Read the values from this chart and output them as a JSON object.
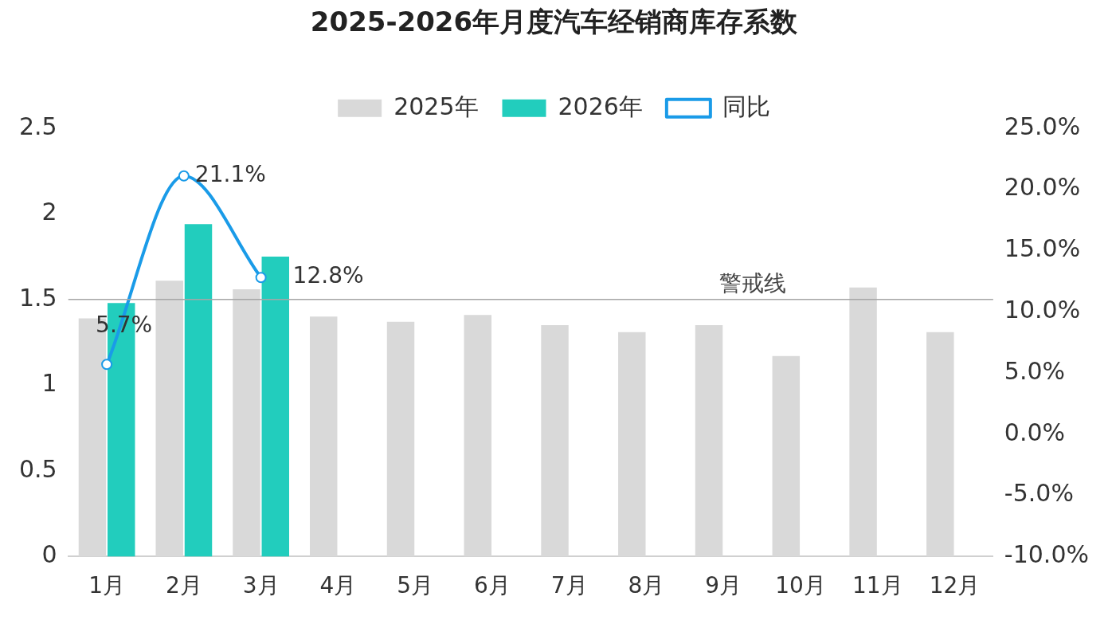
{
  "chart_data": {
    "type": "bar",
    "title": "2025-2026年月度汽车经销商库存系数",
    "categories": [
      "1月",
      "2月",
      "3月",
      "4月",
      "5月",
      "6月",
      "7月",
      "8月",
      "9月",
      "10月",
      "11月",
      "12月"
    ],
    "series": [
      {
        "name": "2025年",
        "color": "#d9d9d9",
        "values": [
          1.39,
          1.61,
          1.56,
          1.4,
          1.37,
          1.41,
          1.35,
          1.31,
          1.35,
          1.17,
          1.57,
          1.31
        ]
      },
      {
        "name": "2026年",
        "color": "#22cdbd",
        "values": [
          1.48,
          1.94,
          1.75,
          null,
          null,
          null,
          null,
          null,
          null,
          null,
          null,
          null
        ]
      },
      {
        "name": "同比",
        "type": "line",
        "axis": "y2",
        "color": "#1a9be8",
        "values": [
          5.7,
          21.1,
          12.8,
          null,
          null,
          null,
          null,
          null,
          null,
          null,
          null,
          null
        ],
        "value_labels": [
          "5.7%",
          "21.1%",
          "12.8%",
          null,
          null,
          null,
          null,
          null,
          null,
          null,
          null,
          null
        ]
      }
    ],
    "ylim": [
      0,
      2.5
    ],
    "yticks": [
      0,
      0.5,
      1,
      1.5,
      2,
      2.5
    ],
    "y2lim": [
      -10,
      25
    ],
    "y2ticks": [
      {
        "value": -10,
        "label": "-10.0%"
      },
      {
        "value": -5,
        "label": "-5.0%"
      },
      {
        "value": 0,
        "label": "0.0%"
      },
      {
        "value": 5,
        "label": "5.0%"
      },
      {
        "value": 10,
        "label": "10.0%"
      },
      {
        "value": 15,
        "label": "15.0%"
      },
      {
        "value": 20,
        "label": "20.0%"
      },
      {
        "value": 25,
        "label": "25.0%"
      }
    ],
    "ref_lines": [
      {
        "axis": "y",
        "value": 1.5,
        "label": "警戒线",
        "color": "#a6a6a6"
      }
    ],
    "grid": false,
    "legend": "top",
    "marker": "circle",
    "line_style": "solid"
  }
}
